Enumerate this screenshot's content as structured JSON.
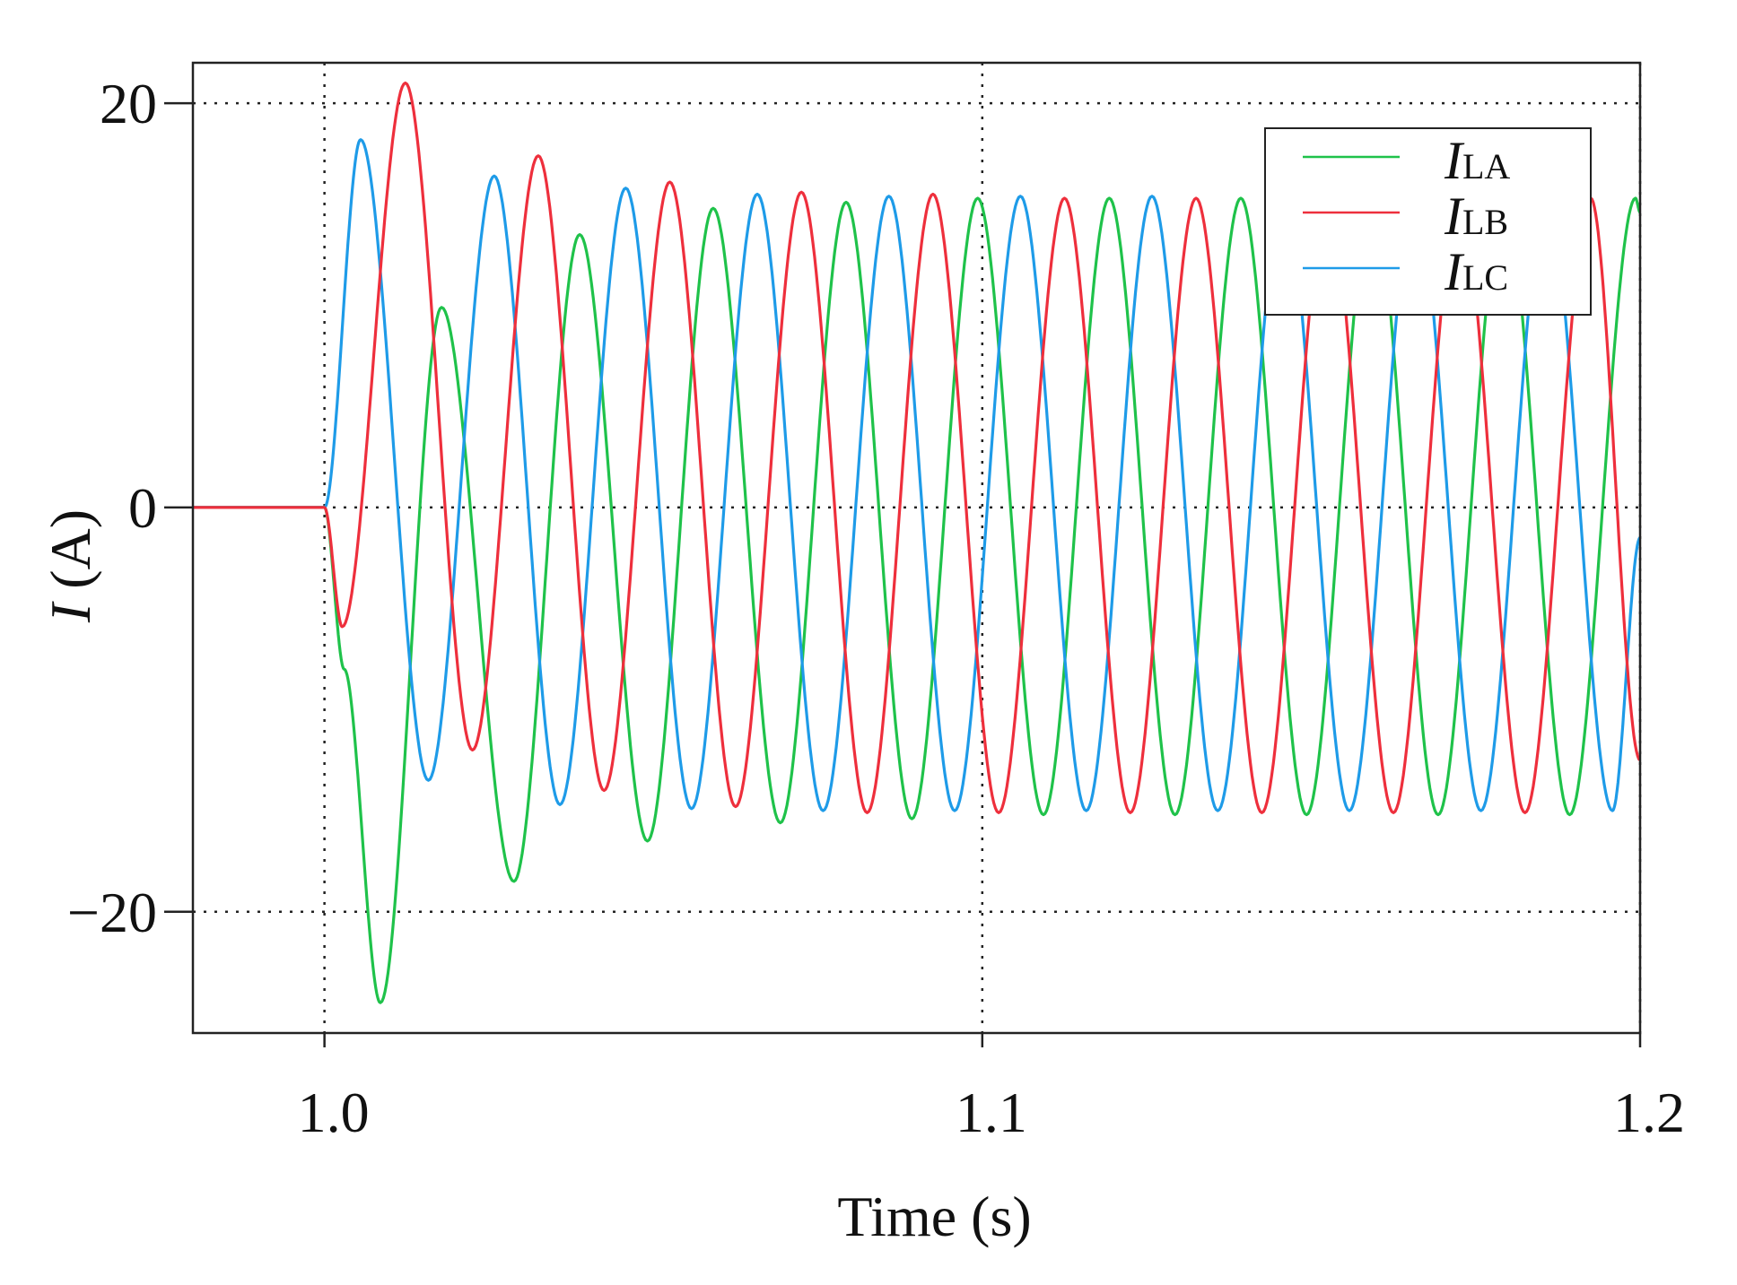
{
  "chart_data": {
    "type": "line",
    "title": "",
    "xlabel": "Time (s)",
    "ylabel_symbol": "I",
    "ylabel_unit": " (A)",
    "xlim": [
      0.98,
      1.2
    ],
    "ylim": [
      -26,
      22
    ],
    "x_ticks": [
      {
        "value": 1.0,
        "label": "1.0"
      },
      {
        "value": 1.1,
        "label": "1.1"
      },
      {
        "value": 1.2,
        "label": "1.2"
      }
    ],
    "y_ticks": [
      {
        "value": 20,
        "label": "20"
      },
      {
        "value": 0,
        "label": "0"
      },
      {
        "value": -20,
        "label": "−20"
      }
    ],
    "grid": {
      "style": "dotted",
      "x": [
        1.0,
        1.1,
        1.2
      ],
      "y": [
        20,
        0,
        -20
      ]
    },
    "legend": {
      "position": "top-right",
      "entries": [
        {
          "symbol": "I",
          "subscript": "LA",
          "color": "#1fc24a"
        },
        {
          "symbol": "I",
          "subscript": "LB",
          "color": "#ee2f3c"
        },
        {
          "symbol": "I",
          "subscript": "LC",
          "color": "#1e9be8"
        }
      ]
    },
    "series": [
      {
        "id": "LA",
        "color": "#1fc24a",
        "points": [
          [
            0.98,
            0
          ],
          [
            1.0,
            0
          ],
          [
            1.003,
            -8
          ],
          [
            1.0085,
            -24.5
          ],
          [
            1.0178,
            9.9
          ],
          [
            1.0288,
            -18.5
          ],
          [
            1.0388,
            13.5
          ],
          [
            1.0491,
            -16.5
          ],
          [
            1.0591,
            14.8
          ],
          [
            1.0693,
            -15.6
          ],
          [
            1.0793,
            15.1
          ],
          [
            1.0893,
            -15.4
          ],
          [
            1.0993,
            15.3
          ],
          [
            1.1093,
            -15.2
          ],
          [
            1.1193,
            15.3
          ],
          [
            1.1293,
            -15.2
          ],
          [
            1.1393,
            15.3
          ],
          [
            1.1493,
            -15.2
          ],
          [
            1.1593,
            15.3
          ],
          [
            1.1693,
            -15.2
          ],
          [
            1.1793,
            15.3
          ],
          [
            1.1893,
            -15.2
          ],
          [
            1.1993,
            15.3
          ],
          [
            1.2,
            14.6
          ]
        ]
      },
      {
        "id": "LB",
        "color": "#ee2f3c",
        "points": [
          [
            0.98,
            0
          ],
          [
            1.0,
            0
          ],
          [
            1.0027,
            -5.9
          ],
          [
            1.0123,
            21.0
          ],
          [
            1.0225,
            -12.0
          ],
          [
            1.0325,
            17.4
          ],
          [
            1.0425,
            -14.0
          ],
          [
            1.0525,
            16.1
          ],
          [
            1.0625,
            -14.8
          ],
          [
            1.0725,
            15.6
          ],
          [
            1.0825,
            -15.1
          ],
          [
            1.0925,
            15.5
          ],
          [
            1.1025,
            -15.1
          ],
          [
            1.1125,
            15.3
          ],
          [
            1.1225,
            -15.1
          ],
          [
            1.1325,
            15.3
          ],
          [
            1.1425,
            -15.1
          ],
          [
            1.1525,
            15.3
          ],
          [
            1.1625,
            -15.1
          ],
          [
            1.1725,
            15.3
          ],
          [
            1.1825,
            -15.1
          ],
          [
            1.1925,
            15.3
          ],
          [
            1.2,
            -12.5
          ]
        ]
      },
      {
        "id": "LC",
        "color": "#1e9be8",
        "points": [
          [
            0.98,
            0
          ],
          [
            1.0,
            0
          ],
          [
            1.0055,
            18.2
          ],
          [
            1.0158,
            -13.5
          ],
          [
            1.0258,
            16.4
          ],
          [
            1.0358,
            -14.7
          ],
          [
            1.0458,
            15.8
          ],
          [
            1.0558,
            -14.9
          ],
          [
            1.0658,
            15.5
          ],
          [
            1.0758,
            -15.0
          ],
          [
            1.0858,
            15.4
          ],
          [
            1.0958,
            -15.0
          ],
          [
            1.1058,
            15.4
          ],
          [
            1.1158,
            -15.0
          ],
          [
            1.1258,
            15.4
          ],
          [
            1.1358,
            -15.0
          ],
          [
            1.1458,
            15.4
          ],
          [
            1.1558,
            -15.0
          ],
          [
            1.1658,
            15.4
          ],
          [
            1.1758,
            -15.0
          ],
          [
            1.1858,
            15.4
          ],
          [
            1.1958,
            -15.0
          ],
          [
            1.2,
            -1.5
          ]
        ]
      }
    ]
  }
}
